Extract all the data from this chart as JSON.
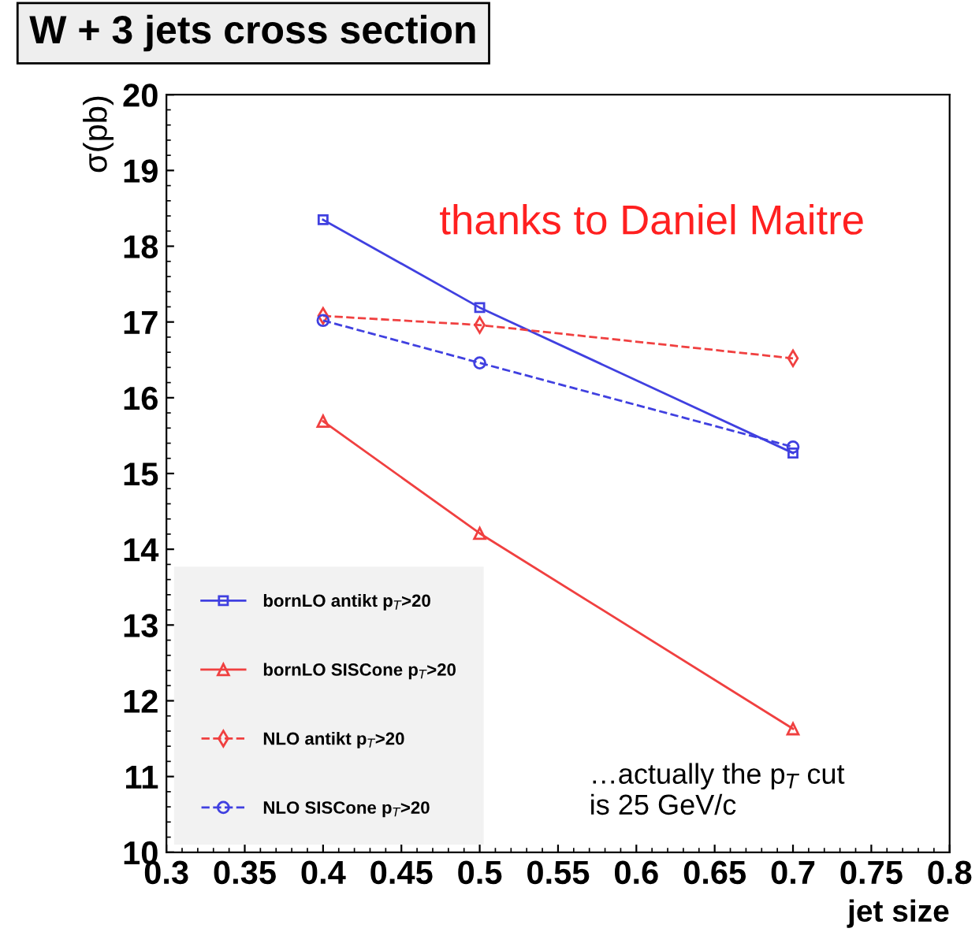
{
  "chart_data": {
    "type": "line",
    "title": "W + 3 jets cross section",
    "xlabel": "jet size",
    "ylabel": "σ(pb)",
    "x": [
      0.4,
      0.5,
      0.7
    ],
    "series": [
      {
        "name": "bornLO antikt p$_{T}$>20",
        "color": "#4040e0",
        "values": [
          18.35,
          17.19,
          15.27
        ],
        "marker": "square",
        "line_style": "solid"
      },
      {
        "name": "bornLO SISCone p$_{T}$>20",
        "color": "#f04040",
        "values": [
          15.69,
          14.21,
          11.63
        ],
        "marker": "triangle",
        "line_style": "solid"
      },
      {
        "name": "NLO antikt p$_{T}$>20",
        "color": "#f04040",
        "values": [
          17.08,
          16.96,
          16.52
        ],
        "marker": "diamond",
        "line_style": "dashed"
      },
      {
        "name": "NLO SISCone p$_{T}$>20",
        "color": "#4040e0",
        "values": [
          17.02,
          16.46,
          15.35
        ],
        "marker": "circle",
        "line_style": "dashed"
      }
    ],
    "xlim": [
      0.3,
      0.8
    ],
    "xticks": [
      0.3,
      0.35,
      0.4,
      0.45,
      0.5,
      0.55,
      0.6,
      0.65,
      0.7,
      0.75,
      0.8
    ],
    "ylim": [
      10,
      20
    ],
    "yticks": [
      10,
      11,
      12,
      13,
      14,
      15,
      16,
      17,
      18,
      19,
      20
    ],
    "grid": false,
    "legend": "bottom left",
    "annotations": [
      "thanks to Daniel Maitre",
      "…actually the p$_{T}$ cut\nis 25 GeV/c"
    ]
  }
}
